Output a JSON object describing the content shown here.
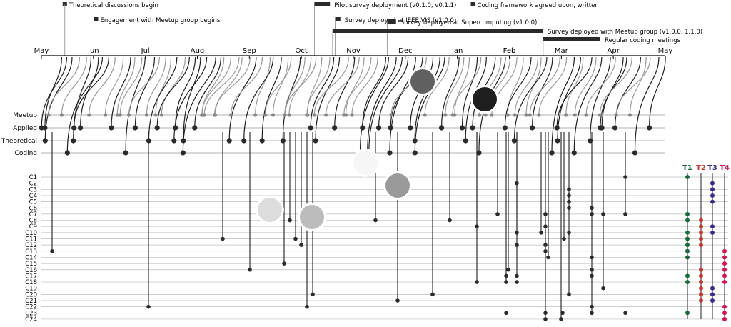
{
  "months": [
    "May",
    "Jun",
    "Jul",
    "Aug",
    "Sep",
    "Oct",
    "Nov",
    "Dec",
    "Jan",
    "Feb",
    "Mar",
    "Apr",
    "May"
  ],
  "events": [
    {
      "label": "Theoretical discussions begin",
      "month": 0.45,
      "level": 0,
      "kind": "point"
    },
    {
      "label": "Engagement with Meetup group begins",
      "month": 1.05,
      "level": 1,
      "kind": "point"
    },
    {
      "label": "Pilot survey deployment (v0.1.0, v0.1.1)",
      "month": 5.25,
      "end": 5.55,
      "level": 0,
      "kind": "span"
    },
    {
      "label": "Survey deployed at IEEE VIS (v1.0.0)",
      "month": 5.65,
      "end": 5.75,
      "level": 1,
      "kind": "span"
    },
    {
      "label": "Survey deployed at Supercomputing (v1.0.0)",
      "month": 6.65,
      "end": 6.82,
      "level": 2,
      "kind": "span"
    },
    {
      "label": "Coding framework agreed upon, written",
      "month": 8.3,
      "level": 0,
      "kind": "point"
    },
    {
      "label": "Survey deployed with Meetup group (v1.0.0, 1.1.0)",
      "month": 5.6,
      "end": 9.65,
      "level": 3,
      "kind": "span"
    },
    {
      "label": "Regular coding meetings",
      "month": 9.65,
      "end": 10.75,
      "level": 4,
      "kind": "span"
    }
  ],
  "rows": {
    "sources": [
      "Meetup",
      "Applied",
      "Theoretical",
      "Coding"
    ],
    "codes": [
      "C1",
      "C2",
      "C3",
      "C4",
      "C5",
      "C6",
      "C7",
      "C8",
      "C9",
      "C10",
      "C11",
      "C12",
      "C13",
      "C14",
      "C15",
      "C16",
      "C17",
      "C18",
      "C19",
      "C20",
      "C21",
      "C22",
      "C23",
      "C24"
    ]
  },
  "themes": [
    {
      "label": "T1",
      "color": "#1a6b3c"
    },
    {
      "label": "T2",
      "color": "#c0392b"
    },
    {
      "label": "T3",
      "color": "#3b2a8a"
    },
    {
      "label": "T4",
      "color": "#d4145a"
    }
  ],
  "colors": {
    "meetup": "#888888",
    "dark": "#2a2a2a",
    "grid": "#aaaaaa"
  }
}
